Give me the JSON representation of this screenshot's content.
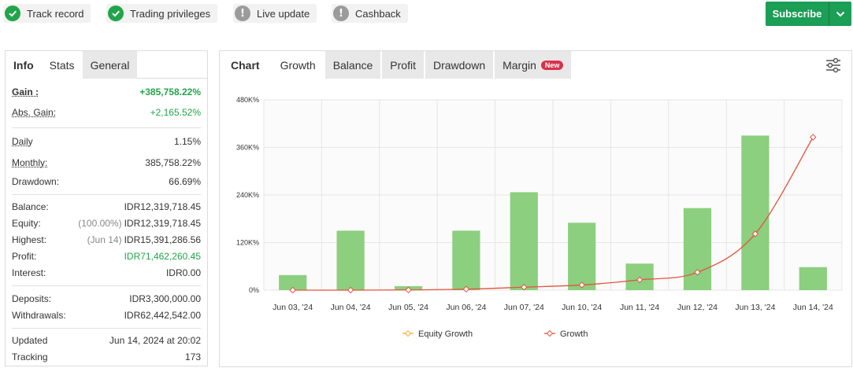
{
  "badges": [
    {
      "label": "Track record",
      "icon": "check-icon",
      "color": "#22a54a"
    },
    {
      "label": "Trading privileges",
      "icon": "check-icon",
      "color": "#22a54a"
    },
    {
      "label": "Live update",
      "icon": "exclamation-icon",
      "color": "#9b9b9b"
    },
    {
      "label": "Cashback",
      "icon": "exclamation-icon",
      "color": "#9b9b9b"
    }
  ],
  "subscribe": {
    "label": "Subscribe",
    "color": "#1b9e55"
  },
  "left_tabs": [
    "Info",
    "Stats",
    "General"
  ],
  "stats": {
    "gain": {
      "label": "Gain :",
      "value": "+385,758.22%"
    },
    "abs_gain": {
      "label": "Abs. Gain:",
      "value": "+2,165.52%"
    },
    "daily": {
      "label": "Daily",
      "value": "1.15%"
    },
    "monthly": {
      "label": "Monthly:",
      "value": "385,758.22%"
    },
    "drawdown": {
      "label": "Drawdown:",
      "value": "66.69%"
    },
    "balance": {
      "label": "Balance:",
      "value": "IDR12,319,718.45"
    },
    "equity": {
      "label": "Equity:",
      "note": "(100.00%)",
      "value": "IDR12,319,718.45"
    },
    "highest": {
      "label": "Highest:",
      "note": "(Jun 14)",
      "value": "IDR15,391,286.56"
    },
    "profit": {
      "label": "Profit:",
      "value": "IDR71,462,260.45"
    },
    "interest": {
      "label": "Interest:",
      "value": "IDR0.00"
    },
    "deposits": {
      "label": "Deposits:",
      "value": "IDR3,300,000.00"
    },
    "withdrawals": {
      "label": "Withdrawals:",
      "value": "IDR62,442,542.00"
    },
    "updated": {
      "label": "Updated",
      "value": "Jun 14, 2024 at 20:02"
    },
    "tracking": {
      "label": "Tracking",
      "value": "173"
    }
  },
  "chart_tabs": {
    "chart": "Chart",
    "growth": "Growth",
    "balance": "Balance",
    "profit": "Profit",
    "drawdown": "Drawdown",
    "margin": "Margin",
    "new_badge": "New"
  },
  "chart_data": {
    "type": "bar",
    "categories": [
      "Jun 03, '24",
      "Jun 04, '24",
      "Jun 05, '24",
      "Jun 06, '24",
      "Jun 07, '24",
      "Jun 10, '24",
      "Jun 11, '24",
      "Jun 12, '24",
      "Jun 13, '24",
      "Jun 14, '24"
    ],
    "yticks": [
      "0%",
      "120K%",
      "240K%",
      "360K%",
      "480K%"
    ],
    "ylim": [
      0,
      480000
    ],
    "series": [
      {
        "name": "Equity Growth",
        "kind": "line",
        "color": "#f0b429",
        "values": [
          0,
          0,
          0,
          0,
          0,
          0,
          0,
          0,
          0,
          0
        ]
      },
      {
        "name": "Growth",
        "kind": "line",
        "color": "#e5533d",
        "values": [
          0,
          0,
          500,
          2500,
          7500,
          13000,
          26000,
          45000,
          142000,
          385758
        ]
      },
      {
        "kind": "bar",
        "color": "#8ccf7e",
        "values": [
          38000,
          150000,
          10000,
          150000,
          247000,
          170000,
          67000,
          207000,
          390000,
          58000
        ]
      }
    ],
    "grid": true,
    "legend": "bottom"
  }
}
